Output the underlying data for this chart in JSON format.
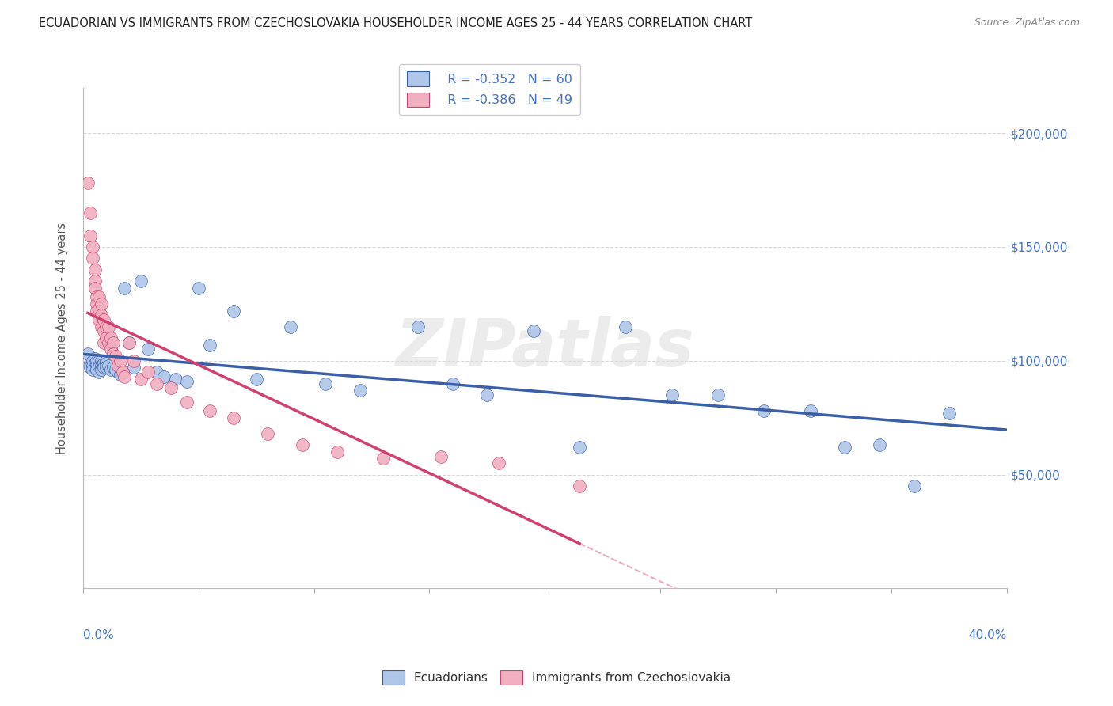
{
  "title": "ECUADORIAN VS IMMIGRANTS FROM CZECHOSLOVAKIA HOUSEHOLDER INCOME AGES 25 - 44 YEARS CORRELATION CHART",
  "source": "Source: ZipAtlas.com",
  "ylabel": "Householder Income Ages 25 - 44 years",
  "legend_label1": "Ecuadorians",
  "legend_label2": "Immigrants from Czechoslovakia",
  "legend_r1": "R = -0.352",
  "legend_n1": "N = 60",
  "legend_r2": "R = -0.386",
  "legend_n2": "N = 49",
  "watermark": "ZIPatlas",
  "blue_line_color": "#3a5fa8",
  "pink_line_color": "#d04070",
  "blue_scatter_color": "#aec6e8",
  "pink_scatter_color": "#f0b0c0",
  "axis_color": "#4472c4",
  "title_color": "#222222",
  "grid_color": "#cccccc",
  "xlim": [
    0.0,
    0.4
  ],
  "ylim": [
    0,
    220000
  ],
  "yticks": [
    0,
    50000,
    100000,
    150000,
    200000
  ],
  "ytick_labels": [
    "",
    "$50,000",
    "$100,000",
    "$150,000",
    "$200,000"
  ],
  "blue_scatter_x": [
    0.002,
    0.003,
    0.003,
    0.004,
    0.004,
    0.004,
    0.005,
    0.005,
    0.005,
    0.006,
    0.006,
    0.006,
    0.007,
    0.007,
    0.007,
    0.007,
    0.008,
    0.008,
    0.008,
    0.009,
    0.009,
    0.01,
    0.01,
    0.01,
    0.011,
    0.012,
    0.013,
    0.014,
    0.015,
    0.016,
    0.018,
    0.02,
    0.022,
    0.025,
    0.028,
    0.032,
    0.035,
    0.04,
    0.045,
    0.05,
    0.055,
    0.065,
    0.075,
    0.09,
    0.105,
    0.12,
    0.145,
    0.16,
    0.175,
    0.195,
    0.215,
    0.235,
    0.255,
    0.275,
    0.295,
    0.315,
    0.33,
    0.345,
    0.36,
    0.375
  ],
  "blue_scatter_y": [
    103000,
    99000,
    97000,
    100000,
    98000,
    96000,
    101000,
    99000,
    97000,
    100000,
    98000,
    96000,
    100000,
    98000,
    97000,
    95000,
    100000,
    98000,
    96000,
    99000,
    97000,
    100000,
    99000,
    97000,
    98000,
    96000,
    97000,
    96000,
    95000,
    94000,
    132000,
    108000,
    97000,
    135000,
    105000,
    95000,
    93000,
    92000,
    91000,
    132000,
    107000,
    122000,
    92000,
    115000,
    90000,
    87000,
    115000,
    90000,
    85000,
    113000,
    62000,
    115000,
    85000,
    85000,
    78000,
    78000,
    62000,
    63000,
    45000,
    77000
  ],
  "pink_scatter_x": [
    0.002,
    0.003,
    0.003,
    0.004,
    0.004,
    0.005,
    0.005,
    0.005,
    0.006,
    0.006,
    0.006,
    0.007,
    0.007,
    0.007,
    0.008,
    0.008,
    0.008,
    0.009,
    0.009,
    0.009,
    0.01,
    0.01,
    0.011,
    0.011,
    0.012,
    0.012,
    0.013,
    0.013,
    0.014,
    0.015,
    0.016,
    0.017,
    0.018,
    0.02,
    0.022,
    0.025,
    0.028,
    0.032,
    0.038,
    0.045,
    0.055,
    0.065,
    0.08,
    0.095,
    0.11,
    0.13,
    0.155,
    0.18,
    0.215
  ],
  "pink_scatter_y": [
    178000,
    165000,
    155000,
    150000,
    145000,
    140000,
    135000,
    132000,
    128000,
    125000,
    122000,
    128000,
    123000,
    118000,
    125000,
    120000,
    115000,
    118000,
    113000,
    108000,
    115000,
    110000,
    115000,
    108000,
    110000,
    105000,
    108000,
    103000,
    102000,
    98000,
    100000,
    95000,
    93000,
    108000,
    100000,
    92000,
    95000,
    90000,
    88000,
    82000,
    78000,
    75000,
    68000,
    63000,
    60000,
    57000,
    58000,
    55000,
    45000
  ]
}
